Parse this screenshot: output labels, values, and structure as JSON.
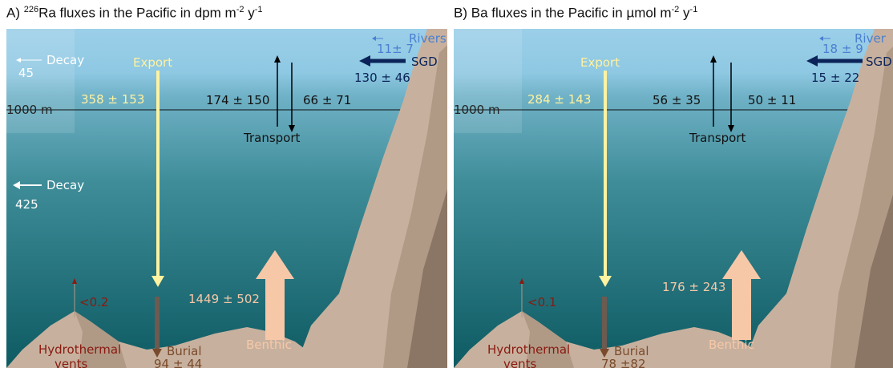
{
  "panels": [
    {
      "title_prefix": "A) ",
      "title_sup1": "226",
      "title_main": "Ra fluxes in the Pacific in dpm m",
      "title_sup2": "-2",
      "title_mid": " y",
      "title_sup3": "-1",
      "depth_label": "1000 m",
      "rivers_label": "Rivers",
      "rivers_value": "11± 7",
      "sgd_label": "SGD",
      "sgd_value": "130 ± 46",
      "decay_label": "Decay",
      "decay_surface": "45",
      "decay_deep": "425",
      "export_label": "Export",
      "export_value": "358 ± 153",
      "transport_up": "174 ± 150",
      "transport_down": "66 ± 71",
      "transport_label": "Transport",
      "benthic_value": "1449 ± 502",
      "benthic_label": "Benthic",
      "hydro_value": "<0.2",
      "hydro_label_1": "Hydrothermal",
      "hydro_label_2": "vents",
      "burial_label": "Burial",
      "burial_value": "94 ± 44"
    },
    {
      "title_prefix": "B) ",
      "title_main": "Ba fluxes in the Pacific in µmol m",
      "title_sup2": "-2",
      "title_mid": " y",
      "title_sup3": "-1",
      "depth_label": "1000 m",
      "rivers_label": "River",
      "rivers_value": "18 ± 9",
      "sgd_label": "SGD",
      "sgd_value": "15 ± 22",
      "export_label": "Export",
      "export_value": "284 ± 143",
      "transport_up": "56 ± 35",
      "transport_down": "50 ± 11",
      "transport_label": "Transport",
      "benthic_value": "176 ± 243",
      "benthic_label": "Benthic",
      "hydro_value": "<0.1",
      "hydro_label_1": "Hydrothermal",
      "hydro_label_2": "vents",
      "burial_label": "Burial",
      "burial_value": "78 ±82"
    }
  ],
  "colors": {
    "surface_water": "#9ccfe9",
    "deep_water": "#0f5c64",
    "land_light": "#c7b19e",
    "land_mid": "#b09a86",
    "land_dark": "#8b7565",
    "export_arrow": "#fff2a0",
    "benthic_arrow": "#f7c8a8",
    "sgd_arrow": "#0b2358",
    "rivers": "#4a7fd1",
    "hydro": "#8a1a10",
    "burial": "#7a4a2c"
  }
}
